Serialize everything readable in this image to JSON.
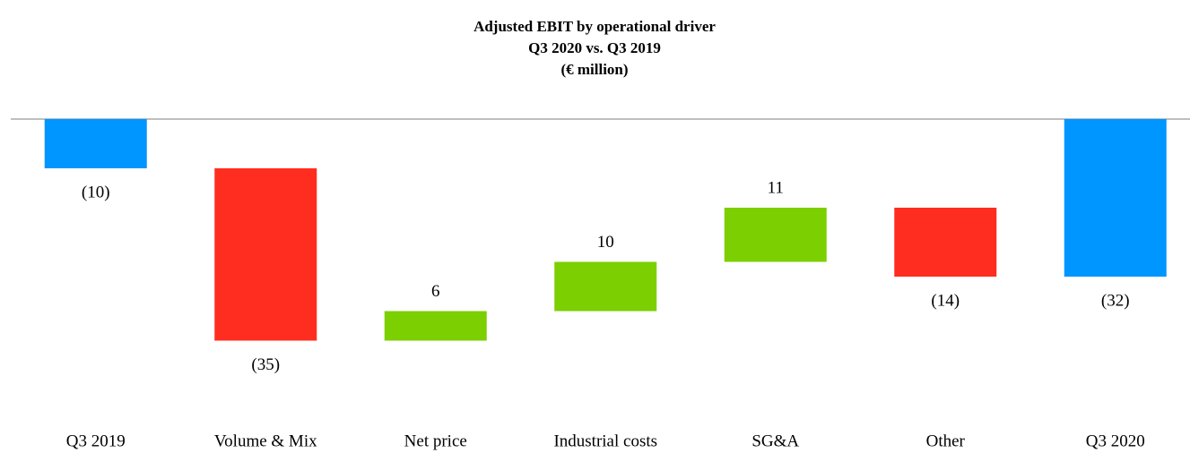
{
  "chart_data": {
    "type": "waterfall",
    "title": [
      "Adjusted EBIT by operational driver",
      "Q3 2020 vs. Q3 2019",
      "(€ million)"
    ],
    "categories": [
      "Q3 2019",
      "Volume & Mix",
      "Net price",
      "Industrial costs",
      "SG&A",
      "Other",
      "Q3 2020"
    ],
    "values": [
      -10,
      -35,
      6,
      10,
      11,
      -14,
      -32
    ],
    "value_labels": [
      "(10)",
      "(35)",
      "6",
      "10",
      "11",
      "(14)",
      "(32)"
    ],
    "colors": [
      "#0096ff",
      "#ff2d1f",
      "#7ccf00",
      "#7ccf00",
      "#7ccf00",
      "#ff2d1f",
      "#0096ff"
    ]
  }
}
